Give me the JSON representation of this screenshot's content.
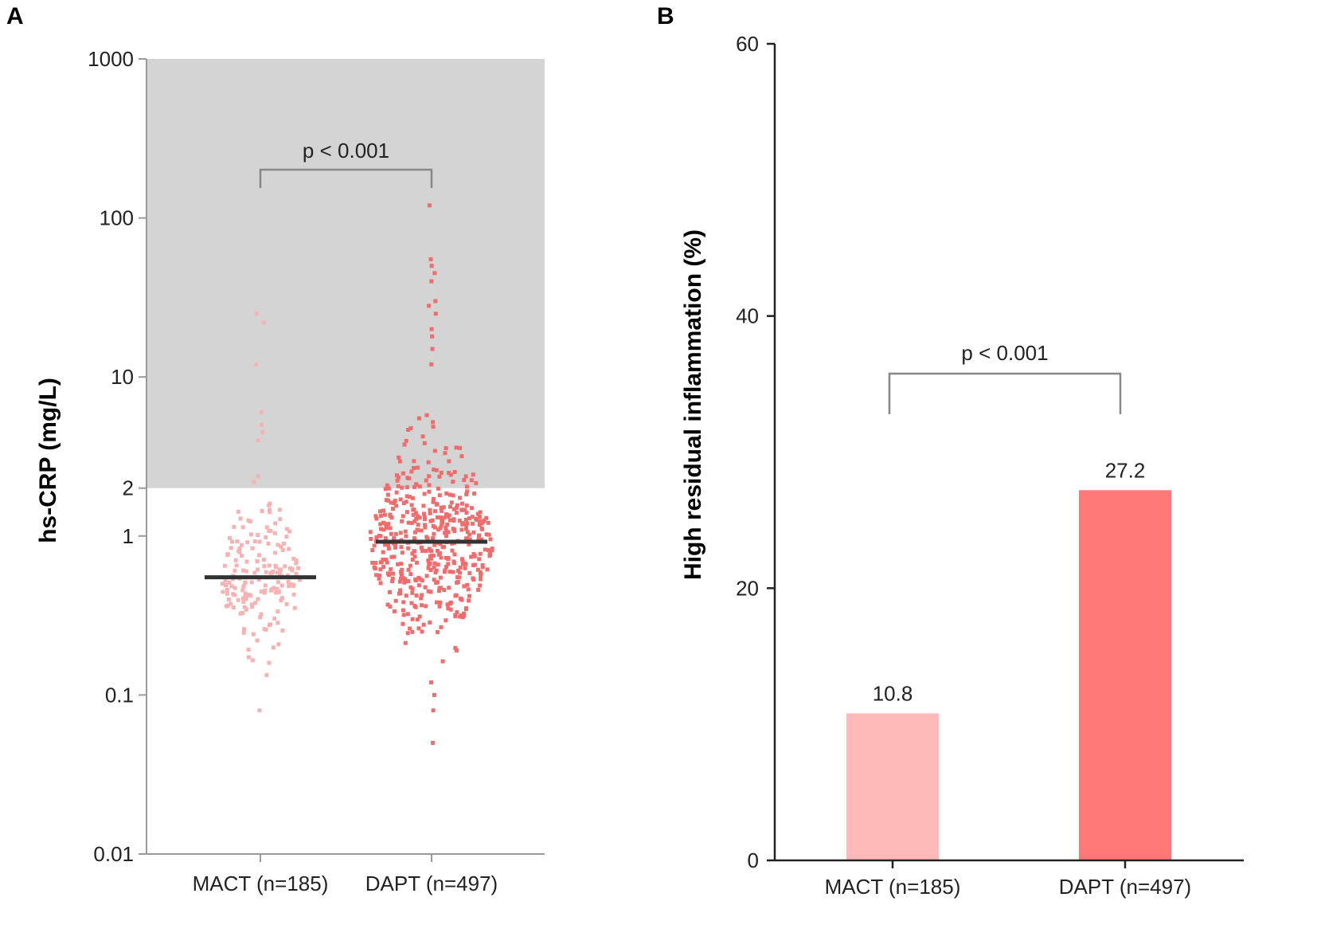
{
  "chart_data": [
    {
      "panel": "A",
      "type": "scatter",
      "scale": "log",
      "ylabel": "hs-CRP (mg/L)",
      "categories": [
        "MACT (n=185)",
        "DAPT (n=497)"
      ],
      "yticks": [
        {
          "value": 0.01,
          "label": "0.01"
        },
        {
          "value": 0.1,
          "label": "0.1"
        },
        {
          "value": 1,
          "label": "1"
        },
        {
          "value": 2,
          "label": "2"
        },
        {
          "value": 10,
          "label": "10"
        },
        {
          "value": 100,
          "label": "100"
        },
        {
          "value": 1000,
          "label": "1000"
        }
      ],
      "ylim": [
        0.01,
        1000
      ],
      "shaded_region": [
        2,
        1000
      ],
      "medians": [
        0.55,
        0.92
      ],
      "series": [
        {
          "name": "MACT (n=185)",
          "color": "#f7b3b3",
          "n": 185,
          "median": 0.55,
          "min": 0.08,
          "max": 25,
          "outliers": [
            25,
            22,
            12,
            6,
            5,
            4.5,
            4,
            0.08
          ]
        },
        {
          "name": "DAPT (n=497)",
          "color": "#ef6d6d",
          "n": 497,
          "median": 0.92,
          "min": 0.05,
          "max": 120,
          "outliers": [
            120,
            55,
            50,
            45,
            40,
            30,
            28,
            25,
            20,
            18,
            15,
            12,
            0.12,
            0.1,
            0.08,
            0.05
          ]
        }
      ],
      "annotation": {
        "text": "p < 0.001"
      }
    },
    {
      "panel": "B",
      "type": "bar",
      "ylabel": "High residual inflammation (%)",
      "categories": [
        "MACT (n=185)",
        "DAPT (n=497)"
      ],
      "values": [
        10.8,
        27.2
      ],
      "value_labels": [
        "10.8",
        "27.2"
      ],
      "colors": [
        "#ffb9b9",
        "#ff7878"
      ],
      "ylim": [
        0,
        60
      ],
      "yticks": [
        {
          "value": 0,
          "label": "0"
        },
        {
          "value": 20,
          "label": "20"
        },
        {
          "value": 40,
          "label": "40"
        },
        {
          "value": 60,
          "label": "60"
        }
      ],
      "annotation": {
        "text": "p < 0.001"
      }
    }
  ]
}
